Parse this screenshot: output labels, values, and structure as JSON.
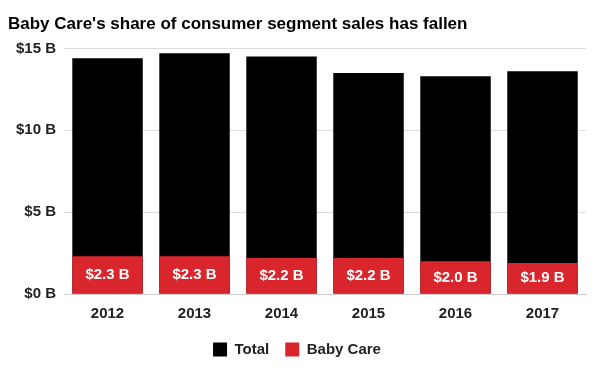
{
  "chart_data": {
    "type": "bar",
    "title": "Baby Care's share of consumer segment sales has fallen",
    "categories": [
      "2012",
      "2013",
      "2014",
      "2015",
      "2016",
      "2017"
    ],
    "series": [
      {
        "name": "Total",
        "color": "#000000",
        "values": [
          14.4,
          14.7,
          14.5,
          13.5,
          13.3,
          13.6
        ]
      },
      {
        "name": "Baby Care",
        "color": "#d9262c",
        "values": [
          2.3,
          2.3,
          2.2,
          2.2,
          2.0,
          1.9
        ],
        "value_labels": [
          "$2.3 B",
          "$2.3 B",
          "$2.2 B",
          "$2.2 B",
          "$2.0 B",
          "$1.9 B"
        ]
      }
    ],
    "ylim": [
      0,
      15
    ],
    "yticks": [
      {
        "value": 0,
        "label": "$0 B"
      },
      {
        "value": 5,
        "label": "$5 B"
      },
      {
        "value": 10,
        "label": "$10 B"
      },
      {
        "value": 15,
        "label": "$15 B"
      }
    ],
    "grid": true,
    "legend": "bottom",
    "data_labels": true
  }
}
